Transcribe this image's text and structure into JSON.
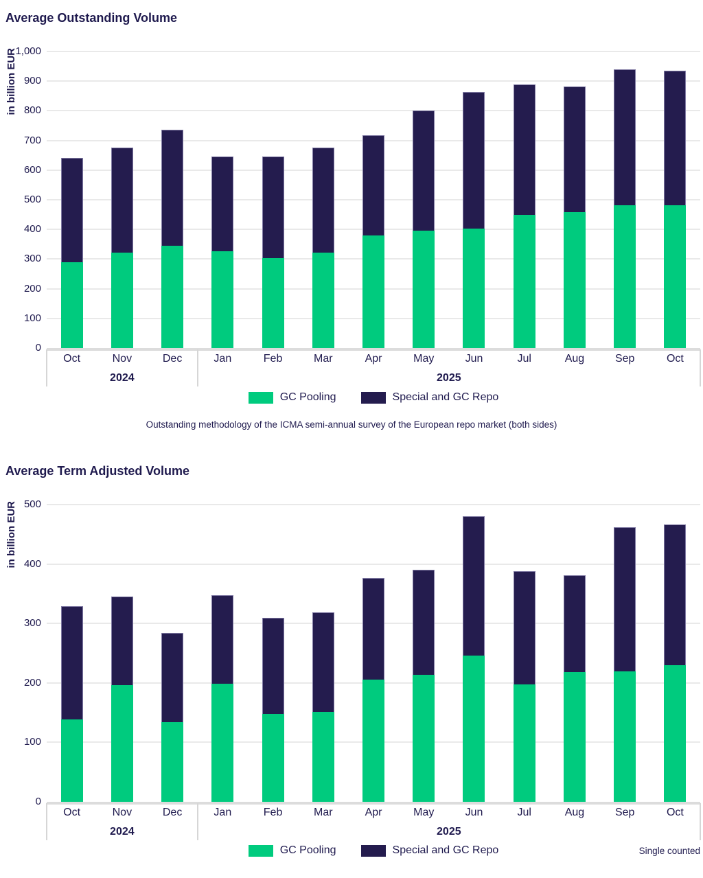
{
  "colors": {
    "gc_pooling": "#00cb7e",
    "special_gc_repo": "#241c4e",
    "text": "#1f1a4e"
  },
  "chart_data": [
    {
      "type": "bar",
      "stacked": true,
      "title": "Average Outstanding Volume",
      "ylabel": "in billion EUR",
      "ylim": [
        0,
        1000
      ],
      "grid": true,
      "legend_position": "bottom-center",
      "yticks": [
        {
          "value": 0,
          "label": "0"
        },
        {
          "value": 100,
          "label": "100"
        },
        {
          "value": 200,
          "label": "200"
        },
        {
          "value": 300,
          "label": "300"
        },
        {
          "value": 400,
          "label": "400"
        },
        {
          "value": 500,
          "label": "500"
        },
        {
          "value": 600,
          "label": "600"
        },
        {
          "value": 700,
          "label": "700"
        },
        {
          "value": 800,
          "label": "800"
        },
        {
          "value": 900,
          "label": "900"
        },
        {
          "value": 1000,
          "label": "1,000"
        }
      ],
      "categories": [
        "Oct",
        "Nov",
        "Dec",
        "Jan",
        "Feb",
        "Mar",
        "Apr",
        "May",
        "Jun",
        "Jul",
        "Aug",
        "Sep",
        "Oct"
      ],
      "year_groups": [
        {
          "label": "2024",
          "span": 3
        },
        {
          "label": "2025",
          "span": 10
        }
      ],
      "series": [
        {
          "name": "GC Pooling",
          "color": "#00cb7e",
          "values": [
            290,
            322,
            345,
            327,
            304,
            322,
            380,
            397,
            403,
            450,
            458,
            481,
            481
          ]
        },
        {
          "name": "Special and GC Repo",
          "color": "#241c4e",
          "values": [
            351,
            354,
            391,
            320,
            343,
            354,
            338,
            404,
            461,
            438,
            425,
            460,
            454
          ]
        }
      ],
      "totals": [
        641,
        676,
        736,
        647,
        647,
        676,
        718,
        801,
        864,
        888,
        883,
        941,
        935
      ],
      "caption": "Outstanding methodology of the ICMA semi-annual survey of the European repo market (both sides)"
    },
    {
      "type": "bar",
      "stacked": true,
      "title": "Average Term Adjusted Volume",
      "ylabel": "in billion EUR",
      "ylim": [
        0,
        500
      ],
      "grid": true,
      "legend_position": "bottom-center",
      "yticks": [
        {
          "value": 0,
          "label": "0"
        },
        {
          "value": 100,
          "label": "100"
        },
        {
          "value": 200,
          "label": "200"
        },
        {
          "value": 300,
          "label": "300"
        },
        {
          "value": 400,
          "label": "400"
        },
        {
          "value": 500,
          "label": "500"
        }
      ],
      "categories": [
        "Oct",
        "Nov",
        "Dec",
        "Jan",
        "Feb",
        "Mar",
        "Apr",
        "May",
        "Jun",
        "Jul",
        "Aug",
        "Sep",
        "Oct"
      ],
      "year_groups": [
        {
          "label": "2024",
          "span": 3
        },
        {
          "label": "2025",
          "span": 10
        }
      ],
      "series": [
        {
          "name": "GC Pooling",
          "color": "#00cb7e",
          "values": [
            139,
            196,
            134,
            199,
            148,
            151,
            206,
            214,
            246,
            197,
            218,
            219,
            230
          ]
        },
        {
          "name": "Special and GC Repo",
          "color": "#241c4e",
          "values": [
            190,
            149,
            150,
            149,
            161,
            168,
            171,
            176,
            235,
            191,
            163,
            243,
            237
          ]
        }
      ],
      "totals": [
        329,
        345,
        284,
        348,
        309,
        319,
        377,
        390,
        481,
        388,
        381,
        462,
        467
      ],
      "note": "Single counted"
    }
  ]
}
